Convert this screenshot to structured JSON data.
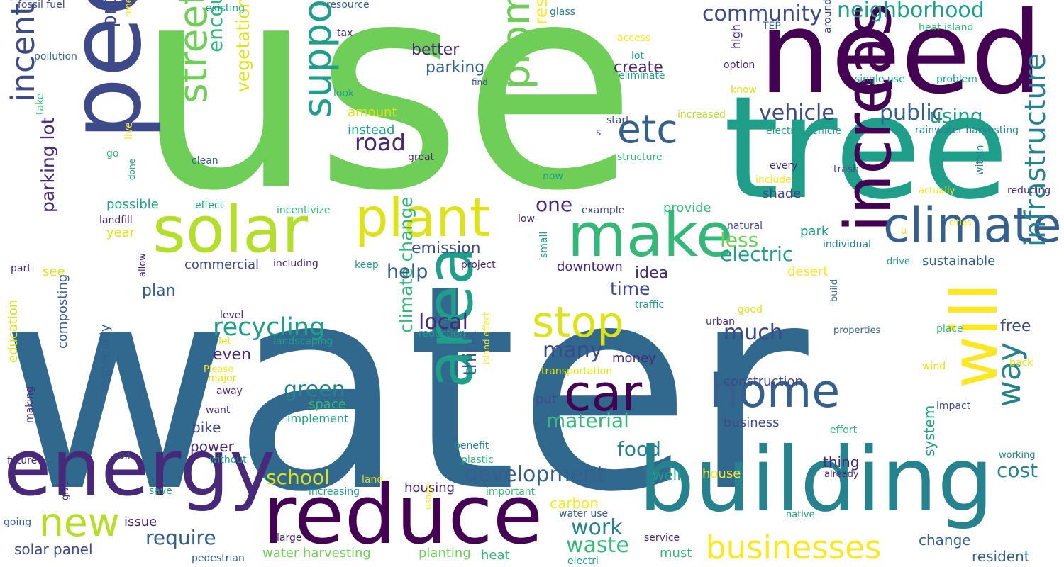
{
  "palette": {
    "dark_purple": "#440154",
    "indigo": "#482878",
    "violet": "#3e4989",
    "blue": "#31688e",
    "slate": "#355f8d",
    "teal": "#26828e",
    "sea": "#1f9e89",
    "green": "#35b779",
    "lime": "#6ece58",
    "yellowgreen": "#b5de2b",
    "yellow": "#dde318",
    "gold": "#fde725"
  },
  "words": [
    {
      "text": "water",
      "color": "blue"
    },
    {
      "text": "use",
      "color": "lime"
    },
    {
      "text": "tree",
      "color": "sea"
    },
    {
      "text": "need",
      "color": "dark_purple"
    },
    {
      "text": "people",
      "color": "violet"
    },
    {
      "text": "building",
      "color": "teal"
    },
    {
      "text": "reduce",
      "color": "dark_purple"
    },
    {
      "text": "energy",
      "color": "indigo"
    },
    {
      "text": "solar",
      "color": "yellowgreen"
    },
    {
      "text": "make",
      "color": "green"
    },
    {
      "text": "plant",
      "color": "yellow"
    },
    {
      "text": "area",
      "color": "sea"
    },
    {
      "text": "will",
      "color": "gold"
    },
    {
      "text": "increase",
      "color": "dark_purple"
    },
    {
      "text": "climate",
      "color": "slate"
    },
    {
      "text": "car",
      "color": "dark_purple"
    },
    {
      "text": "home",
      "color": "slate"
    },
    {
      "text": "stop",
      "color": "yellow"
    },
    {
      "text": "etc",
      "color": "slate"
    },
    {
      "text": "new",
      "color": "yellowgreen"
    },
    {
      "text": "street",
      "color": "lime"
    },
    {
      "text": "support",
      "color": "sea"
    },
    {
      "text": "promote",
      "color": "lime"
    },
    {
      "text": "incentive",
      "color": "violet"
    },
    {
      "text": "businesses",
      "color": "gold"
    },
    {
      "text": "way",
      "color": "teal"
    },
    {
      "text": "infrastructure",
      "color": "teal"
    },
    {
      "text": "community",
      "color": "violet"
    },
    {
      "text": "neighborhood",
      "color": "sea"
    },
    {
      "text": "vehicle",
      "color": "violet"
    },
    {
      "text": "public",
      "color": "slate"
    },
    {
      "text": "using",
      "color": "sea"
    },
    {
      "text": "road",
      "color": "indigo"
    },
    {
      "text": "encourage",
      "color": "green"
    },
    {
      "text": "residential",
      "color": "gold"
    },
    {
      "text": "program",
      "color": "violet"
    },
    {
      "text": "vegetation",
      "color": "yellow"
    },
    {
      "text": "recycling",
      "color": "sea"
    },
    {
      "text": "climate change",
      "color": "green"
    },
    {
      "text": "think",
      "color": "slate"
    },
    {
      "text": "development",
      "color": "slate"
    },
    {
      "text": "local",
      "color": "indigo"
    },
    {
      "text": "many",
      "color": "violet"
    },
    {
      "text": "much",
      "color": "violet"
    },
    {
      "text": "electric",
      "color": "sea"
    },
    {
      "text": "less",
      "color": "lime"
    },
    {
      "text": "one",
      "color": "indigo"
    },
    {
      "text": "help",
      "color": "slate"
    },
    {
      "text": "green",
      "color": "teal"
    },
    {
      "text": "material",
      "color": "green"
    },
    {
      "text": "work",
      "color": "teal"
    },
    {
      "text": "waste",
      "color": "green"
    },
    {
      "text": "require",
      "color": "slate"
    },
    {
      "text": "school",
      "color": "yellow"
    },
    {
      "text": "food",
      "color": "teal"
    },
    {
      "text": "cost",
      "color": "teal"
    },
    {
      "text": "time",
      "color": "violet"
    },
    {
      "text": "idea",
      "color": "indigo"
    },
    {
      "text": "emission",
      "color": "violet"
    },
    {
      "text": "create",
      "color": "indigo"
    },
    {
      "text": "better",
      "color": "indigo"
    },
    {
      "text": "parking",
      "color": "slate"
    },
    {
      "text": "amount",
      "color": "yellow"
    },
    {
      "text": "instead",
      "color": "sea"
    },
    {
      "text": "possible",
      "color": "sea"
    },
    {
      "text": "year",
      "color": "yellow"
    },
    {
      "text": "parking lot",
      "color": "indigo"
    },
    {
      "text": "plan",
      "color": "slate"
    },
    {
      "text": "see",
      "color": "yellow"
    },
    {
      "text": "commercial",
      "color": "violet"
    },
    {
      "text": "downtown",
      "color": "indigo"
    },
    {
      "text": "provide",
      "color": "green"
    },
    {
      "text": "park",
      "color": "sea"
    },
    {
      "text": "shade",
      "color": "violet"
    },
    {
      "text": "sustainable",
      "color": "slate"
    },
    {
      "text": "desert",
      "color": "gold"
    },
    {
      "text": "free",
      "color": "violet"
    },
    {
      "text": "even",
      "color": "indigo"
    },
    {
      "text": "money",
      "color": "indigo"
    },
    {
      "text": "construction",
      "color": "violet"
    },
    {
      "text": "business",
      "color": "violet"
    },
    {
      "text": "space",
      "color": "green"
    },
    {
      "text": "implement",
      "color": "sea"
    },
    {
      "text": "bike",
      "color": "violet"
    },
    {
      "text": "power",
      "color": "indigo"
    },
    {
      "text": "put",
      "color": "violet"
    },
    {
      "text": "house",
      "color": "gold"
    },
    {
      "text": "well",
      "color": "sea"
    },
    {
      "text": "thing",
      "color": "indigo"
    },
    {
      "text": "system",
      "color": "sea"
    },
    {
      "text": "change",
      "color": "slate"
    },
    {
      "text": "resident",
      "color": "slate"
    },
    {
      "text": "solar panel",
      "color": "violet"
    },
    {
      "text": "carbon",
      "color": "gold"
    },
    {
      "text": "housing",
      "color": "indigo"
    },
    {
      "text": "issue",
      "color": "indigo"
    },
    {
      "text": "composting",
      "color": "slate"
    },
    {
      "text": "education",
      "color": "yellow"
    },
    {
      "text": "especially",
      "color": "slate"
    },
    {
      "text": "water harvesting",
      "color": "lime"
    },
    {
      "text": "planting",
      "color": "lime"
    },
    {
      "text": "heat",
      "color": "green"
    },
    {
      "text": "must",
      "color": "green"
    },
    {
      "text": "fossil fuel",
      "color": "violet"
    },
    {
      "text": "pollution",
      "color": "slate"
    },
    {
      "text": "take",
      "color": "green"
    },
    {
      "text": "renewable energy",
      "color": "gold"
    },
    {
      "text": "live",
      "color": "gold"
    },
    {
      "text": "go",
      "color": "green"
    },
    {
      "text": "done",
      "color": "sea"
    },
    {
      "text": "clean",
      "color": "slate"
    },
    {
      "text": "existing",
      "color": "sea"
    },
    {
      "text": "resource",
      "color": "slate"
    },
    {
      "text": "tax",
      "color": "indigo"
    },
    {
      "text": "look",
      "color": "sea"
    },
    {
      "text": "find",
      "color": "violet"
    },
    {
      "text": "great",
      "color": "indigo"
    },
    {
      "text": "glass",
      "color": "teal"
    },
    {
      "text": "access",
      "color": "gold"
    },
    {
      "text": "lot",
      "color": "sea"
    },
    {
      "text": "eliminate",
      "color": "sea"
    },
    {
      "text": "high",
      "color": "indigo"
    },
    {
      "text": "option",
      "color": "indigo"
    },
    {
      "text": "know",
      "color": "yellow"
    },
    {
      "text": "TEP",
      "color": "slate"
    },
    {
      "text": "around",
      "color": "violet"
    },
    {
      "text": "heat island",
      "color": "green"
    },
    {
      "text": "single use",
      "color": "sea"
    },
    {
      "text": "problem",
      "color": "sea"
    },
    {
      "text": "increased",
      "color": "yellowgreen"
    },
    {
      "text": "start",
      "color": "violet"
    },
    {
      "text": "s",
      "color": "violet"
    },
    {
      "text": "structure",
      "color": "green"
    },
    {
      "text": "electric vehicle",
      "color": "sea"
    },
    {
      "text": "rainwater harvesting",
      "color": "teal"
    },
    {
      "text": "every",
      "color": "indigo"
    },
    {
      "text": "include",
      "color": "gold"
    },
    {
      "text": "trash",
      "color": "violet"
    },
    {
      "text": "actually",
      "color": "gold"
    },
    {
      "text": "within",
      "color": "teal"
    },
    {
      "text": "reducing",
      "color": "indigo"
    },
    {
      "text": "now",
      "color": "sea"
    },
    {
      "text": "effect",
      "color": "sea"
    },
    {
      "text": "example",
      "color": "violet"
    },
    {
      "text": "incentivize",
      "color": "green"
    },
    {
      "text": "landfill",
      "color": "indigo"
    },
    {
      "text": "low",
      "color": "indigo"
    },
    {
      "text": "natural",
      "color": "violet"
    },
    {
      "text": "u",
      "color": "yellow"
    },
    {
      "text": "cities",
      "color": "yellow"
    },
    {
      "text": "individual",
      "color": "teal"
    },
    {
      "text": "small",
      "color": "sea"
    },
    {
      "text": "drive",
      "color": "sea"
    },
    {
      "text": "part",
      "color": "indigo"
    },
    {
      "text": "allow",
      "color": "indigo"
    },
    {
      "text": "including",
      "color": "indigo"
    },
    {
      "text": "keep",
      "color": "sea"
    },
    {
      "text": "project",
      "color": "indigo"
    },
    {
      "text": "traffic",
      "color": "sea"
    },
    {
      "text": "level",
      "color": "indigo"
    },
    {
      "text": "let",
      "color": "yellow"
    },
    {
      "text": "landscaping",
      "color": "sea"
    },
    {
      "text": "reduction",
      "color": "sea"
    },
    {
      "text": "urban",
      "color": "indigo"
    },
    {
      "text": "good",
      "color": "yellow"
    },
    {
      "text": "build",
      "color": "slate"
    },
    {
      "text": "properties",
      "color": "slate"
    },
    {
      "text": "place",
      "color": "green"
    },
    {
      "text": "Please",
      "color": "gold"
    },
    {
      "text": "major",
      "color": "yellow"
    },
    {
      "text": "transportation",
      "color": "yellow"
    },
    {
      "text": "island effect",
      "color": "gold"
    },
    {
      "text": "wind",
      "color": "yellow"
    },
    {
      "text": "back",
      "color": "yellow"
    },
    {
      "text": "away",
      "color": "indigo"
    },
    {
      "text": "want",
      "color": "indigo"
    },
    {
      "text": "impact",
      "color": "violet"
    },
    {
      "text": "effort",
      "color": "green"
    },
    {
      "text": "soil",
      "color": "violet"
    },
    {
      "text": "making",
      "color": "indigo"
    },
    {
      "text": "without",
      "color": "sea"
    },
    {
      "text": "benefit",
      "color": "teal"
    },
    {
      "text": "plastic",
      "color": "green"
    },
    {
      "text": "working",
      "color": "teal"
    },
    {
      "text": "future",
      "color": "indigo"
    },
    {
      "text": "land",
      "color": "yellow"
    },
    {
      "text": "already",
      "color": "indigo"
    },
    {
      "text": "save",
      "color": "sea"
    },
    {
      "text": "give",
      "color": "indigo"
    },
    {
      "text": "increasing",
      "color": "sea"
    },
    {
      "text": "important",
      "color": "green"
    },
    {
      "text": "usage",
      "color": "gold"
    },
    {
      "text": "going",
      "color": "slate"
    },
    {
      "text": "water use",
      "color": "slate"
    },
    {
      "text": "native",
      "color": "sea"
    },
    {
      "text": "large",
      "color": "indigo"
    },
    {
      "text": "service",
      "color": "indigo"
    },
    {
      "text": "pedestrian",
      "color": "slate"
    },
    {
      "text": "electri",
      "color": "sea"
    }
  ]
}
